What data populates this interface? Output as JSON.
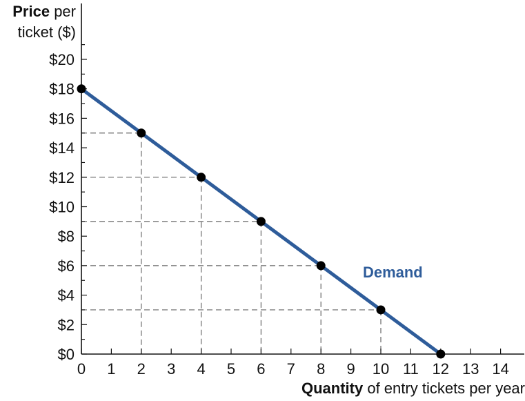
{
  "chart_data": {
    "type": "line",
    "ylabel_bold": "Price",
    "ylabel_rest_1": " per",
    "ylabel_rest_2": "ticket ($)",
    "xlabel_bold": "Quantity",
    "xlabel_rest": " of entry tickets per year",
    "x_ticks": [
      "0",
      "1",
      "2",
      "3",
      "4",
      "5",
      "6",
      "7",
      "8",
      "9",
      "10",
      "11",
      "12",
      "13",
      "14"
    ],
    "y_ticks": [
      "$0",
      "$2",
      "$4",
      "$6",
      "$8",
      "$10",
      "$12",
      "$14",
      "$16",
      "$18",
      "$20"
    ],
    "xlim": [
      0,
      14
    ],
    "ylim": [
      0,
      20
    ],
    "grid": false,
    "series": [
      {
        "name": "Demand",
        "color": "#2e5c9a",
        "x": [
          0,
          2,
          4,
          6,
          8,
          10,
          12
        ],
        "y": [
          18,
          15,
          12,
          9,
          6,
          3,
          0
        ]
      }
    ],
    "series_label_position": "right-middle",
    "guide_lines": "dashed"
  }
}
